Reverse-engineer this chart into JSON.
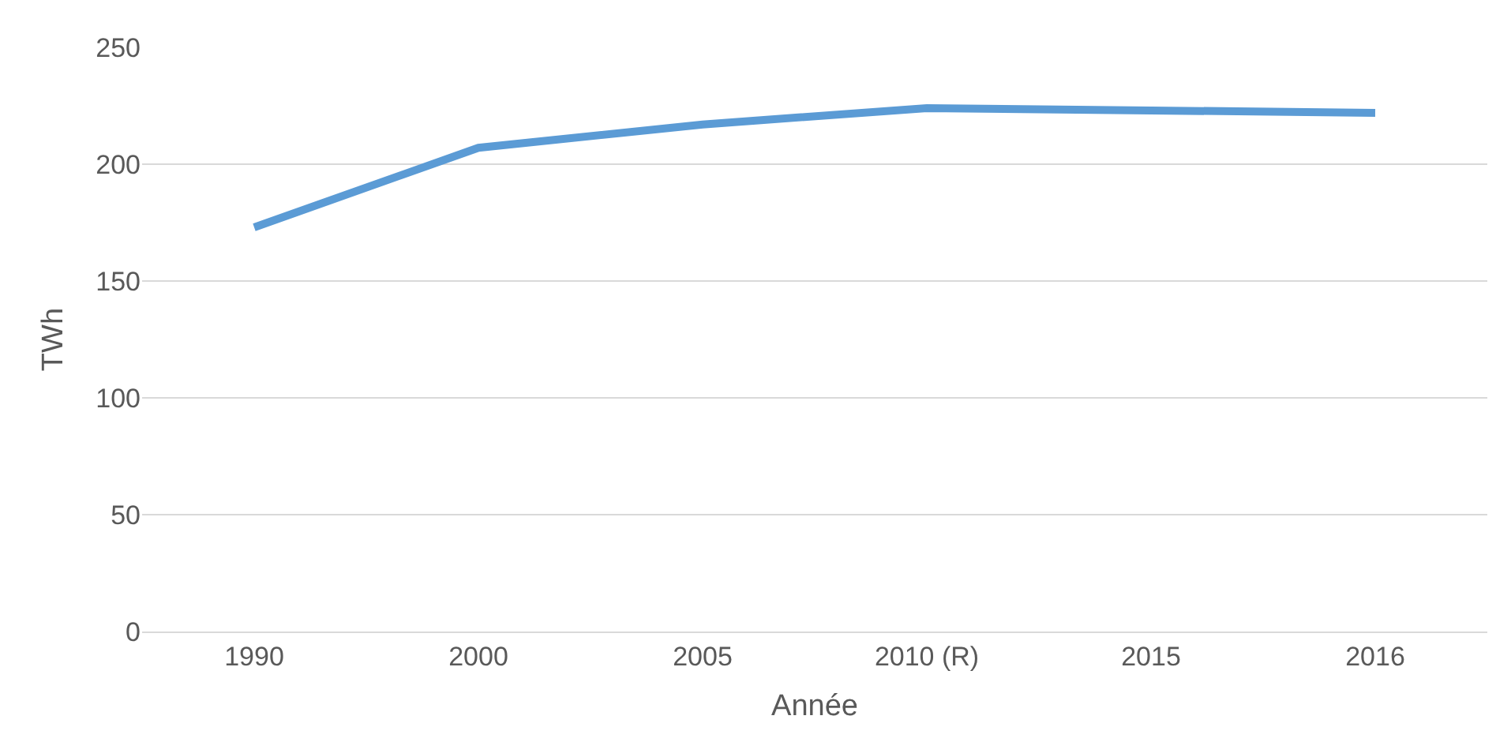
{
  "chart_data": {
    "type": "line",
    "xlabel": "Année",
    "ylabel": "TWh",
    "categories": [
      "1990",
      "2000",
      "2005",
      "2010 (R)",
      "2015",
      "2016"
    ],
    "series": [
      {
        "color": "#5b9bd5",
        "values": [
          173,
          207,
          217,
          224,
          223,
          222
        ]
      }
    ],
    "ylim": [
      0,
      250
    ],
    "yticks": [
      0,
      50,
      100,
      150,
      200,
      250
    ],
    "grid": "y",
    "marker": "none",
    "line_style": "solid"
  }
}
